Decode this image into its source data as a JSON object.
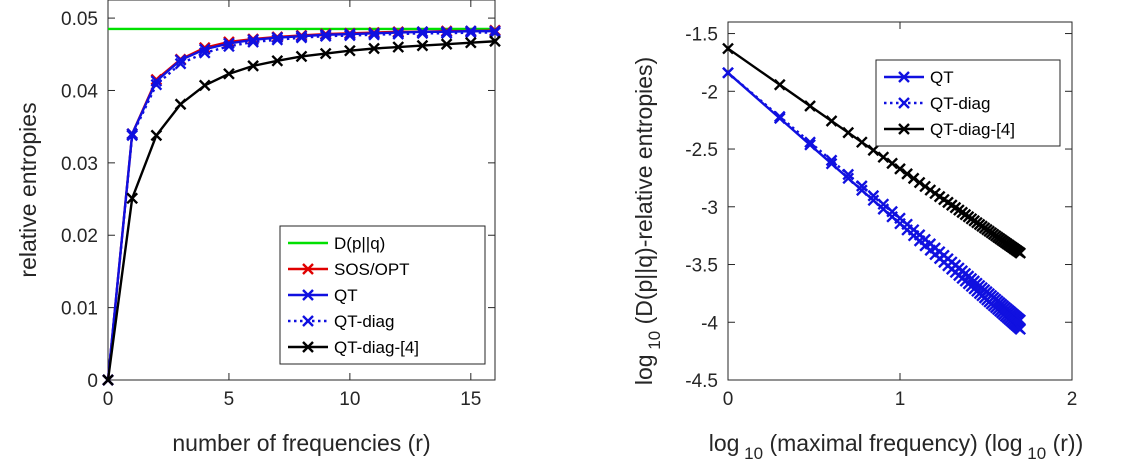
{
  "chart_data": [
    {
      "type": "line",
      "title": "",
      "xlabel": "number of frequencies (r)",
      "ylabel": "relative entropies",
      "xlim": [
        0,
        16
      ],
      "ylim": [
        0,
        0.0525
      ],
      "xticks": [
        0,
        5,
        10,
        15
      ],
      "xtick_labels": [
        "0",
        "5",
        "10",
        "15"
      ],
      "yticks": [
        0,
        0.01,
        0.02,
        0.03,
        0.04,
        0.05
      ],
      "ytick_labels": [
        "0",
        "0.01",
        "0.02",
        "0.03",
        "0.04",
        "0.05"
      ],
      "grid": false,
      "legend_position": "bottom-right",
      "x": [
        0,
        1,
        2,
        3,
        4,
        5,
        6,
        7,
        8,
        9,
        10,
        11,
        12,
        13,
        14,
        15,
        16
      ],
      "series": [
        {
          "name": "D(p||q)",
          "color": "#00e000",
          "style": "solid",
          "marker": "none",
          "values": [
            0.0485,
            0.0485,
            0.0485,
            0.0485,
            0.0485,
            0.0485,
            0.0485,
            0.0485,
            0.0485,
            0.0485,
            0.0485,
            0.0485,
            0.0485,
            0.0485,
            0.0485,
            0.0485,
            0.0485
          ]
        },
        {
          "name": "SOS/OPT",
          "color": "#e00000",
          "style": "solid",
          "marker": "x",
          "values": [
            0,
            0.034,
            0.0415,
            0.0443,
            0.0459,
            0.0467,
            0.0471,
            0.0474,
            0.0476,
            0.0478,
            0.0479,
            0.048,
            0.0481,
            0.0481,
            0.0482,
            0.0482,
            0.0483
          ]
        },
        {
          "name": "QT",
          "color": "#1010e0",
          "style": "solid",
          "marker": "x",
          "values": [
            0,
            0.034,
            0.0413,
            0.0442,
            0.0457,
            0.0465,
            0.047,
            0.0473,
            0.0475,
            0.0477,
            0.0478,
            0.0479,
            0.048,
            0.0481,
            0.0481,
            0.0482,
            0.0482
          ]
        },
        {
          "name": "QT-diag",
          "color": "#1010e0",
          "style": "dotted",
          "marker": "x",
          "values": [
            0,
            0.0338,
            0.0408,
            0.0437,
            0.0452,
            0.0461,
            0.0467,
            0.047,
            0.0473,
            0.0475,
            0.0476,
            0.0477,
            0.0478,
            0.0479,
            0.0479,
            0.048,
            0.048
          ]
        },
        {
          "name": "QT-diag-[4]",
          "color": "#000000",
          "style": "solid",
          "marker": "x",
          "values": [
            0,
            0.0251,
            0.0338,
            0.0381,
            0.0407,
            0.0423,
            0.0434,
            0.0441,
            0.0447,
            0.0451,
            0.0455,
            0.0458,
            0.046,
            0.0462,
            0.0464,
            0.0466,
            0.0468
          ]
        }
      ]
    },
    {
      "type": "line",
      "title": "",
      "xlabel": "log 10 (maximal frequency) (log 10 (r))",
      "xlabel_parts": [
        "log",
        "10",
        "(maximal frequency) (log",
        "10",
        "(r))"
      ],
      "ylabel": "log 10 (D(p||q)-relative entropies)",
      "ylabel_parts": [
        "log",
        "10",
        "(D(p||q)-relative entropies)"
      ],
      "xlim": [
        0,
        2
      ],
      "ylim": [
        -4.5,
        -1.4
      ],
      "xticks": [
        0,
        1,
        2
      ],
      "xtick_labels": [
        "0",
        "1",
        "2"
      ],
      "yticks": [
        -4.5,
        -4,
        -3.5,
        -3,
        -2.5,
        -2,
        -1.5
      ],
      "ytick_labels": [
        "-4.5",
        "-4",
        "-3.5",
        "-3",
        "-2.5",
        "-2",
        "-1.5"
      ],
      "grid": false,
      "legend_position": "top-right",
      "r_range": [
        1,
        50
      ],
      "series": [
        {
          "name": "QT",
          "color": "#1010e0",
          "style": "solid",
          "marker": "x",
          "start": -1.84,
          "end": -4.06
        },
        {
          "name": "QT-diag",
          "color": "#1010e0",
          "style": "dotted",
          "marker": "x",
          "start": -1.84,
          "end": -3.98
        },
        {
          "name": "QT-diag-[4]",
          "color": "#000000",
          "style": "solid",
          "marker": "x",
          "start": -1.63,
          "end": -3.4
        }
      ]
    }
  ]
}
